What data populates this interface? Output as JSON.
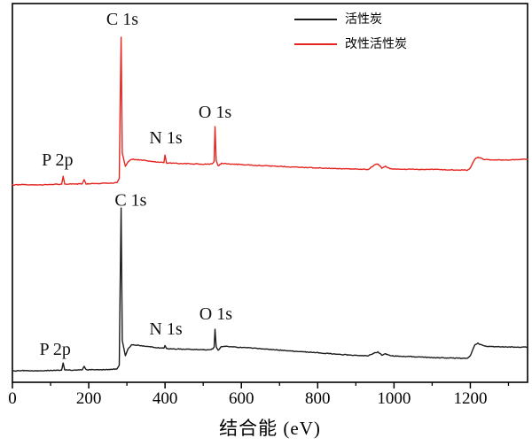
{
  "figure": {
    "background": "#ffffff"
  },
  "chart_data": {
    "type": "line",
    "title": "",
    "xlabel": "结合能 (eV)",
    "ylabel": "",
    "xlim": [
      0,
      1350
    ],
    "ylim": [
      0,
      100
    ],
    "grid": false,
    "legend_position": "top-right",
    "x_major_ticks": [
      0,
      200,
      400,
      600,
      800,
      1000,
      1200
    ],
    "x_minor_ticks": [
      100,
      300,
      500,
      700,
      900,
      1100,
      1300
    ],
    "axis_color": "#000000",
    "peaks_identified": [
      "P 2p",
      "C 1s",
      "N 1s",
      "O 1s"
    ],
    "series": [
      {
        "name": "活性炭",
        "color": "#1a1a1a",
        "points": [
          [
            0,
            3.0
          ],
          [
            30,
            3.1
          ],
          [
            60,
            3.0
          ],
          [
            90,
            3.1
          ],
          [
            120,
            3.2
          ],
          [
            129,
            3.2
          ],
          [
            133,
            5.1
          ],
          [
            137,
            3.3
          ],
          [
            155,
            3.2
          ],
          [
            183,
            3.3
          ],
          [
            188,
            4.2
          ],
          [
            193,
            3.3
          ],
          [
            225,
            3.3
          ],
          [
            258,
            3.4
          ],
          [
            274,
            3.5
          ],
          [
            280,
            4.5
          ],
          [
            284.8,
            46.0
          ],
          [
            288,
            11.0
          ],
          [
            296,
            7.0
          ],
          [
            303,
            8.8
          ],
          [
            312,
            9.9
          ],
          [
            335,
            9.7
          ],
          [
            360,
            9.4
          ],
          [
            385,
            9.1
          ],
          [
            397,
            9.0
          ],
          [
            400,
            9.7
          ],
          [
            404,
            8.9
          ],
          [
            430,
            8.8
          ],
          [
            465,
            8.7
          ],
          [
            500,
            8.6
          ],
          [
            516,
            8.6
          ],
          [
            525,
            8.8
          ],
          [
            528.5,
            9.3
          ],
          [
            531,
            14.0
          ],
          [
            534,
            9.4
          ],
          [
            539,
            8.4
          ],
          [
            548,
            9.5
          ],
          [
            575,
            9.4
          ],
          [
            600,
            9.2
          ],
          [
            650,
            8.9
          ],
          [
            700,
            8.5
          ],
          [
            750,
            8.1
          ],
          [
            800,
            7.8
          ],
          [
            850,
            7.4
          ],
          [
            900,
            7.1
          ],
          [
            933,
            7.0
          ],
          [
            947,
            7.7
          ],
          [
            958,
            8.0
          ],
          [
            968,
            7.2
          ],
          [
            978,
            7.5
          ],
          [
            990,
            7.0
          ],
          [
            1015,
            6.9
          ],
          [
            1060,
            6.7
          ],
          [
            1105,
            6.5
          ],
          [
            1150,
            6.4
          ],
          [
            1192,
            6.3
          ],
          [
            1200,
            7.0
          ],
          [
            1212,
            10.0
          ],
          [
            1220,
            10.3
          ],
          [
            1235,
            9.6
          ],
          [
            1260,
            9.4
          ],
          [
            1300,
            9.3
          ],
          [
            1350,
            9.3
          ]
        ]
      },
      {
        "name": "改性活性炭",
        "color": "#e52520",
        "points": [
          [
            0,
            52.1
          ],
          [
            30,
            52.2
          ],
          [
            60,
            52.1
          ],
          [
            90,
            52.2
          ],
          [
            120,
            52.3
          ],
          [
            129,
            52.3
          ],
          [
            133,
            54.4
          ],
          [
            137,
            52.4
          ],
          [
            155,
            52.3
          ],
          [
            183,
            52.4
          ],
          [
            188,
            53.5
          ],
          [
            193,
            52.4
          ],
          [
            225,
            52.5
          ],
          [
            258,
            52.6
          ],
          [
            274,
            52.7
          ],
          [
            280,
            53.8
          ],
          [
            284.8,
            91.1
          ],
          [
            288,
            60.5
          ],
          [
            296,
            57.0
          ],
          [
            303,
            58.2
          ],
          [
            312,
            58.9
          ],
          [
            335,
            58.7
          ],
          [
            360,
            58.4
          ],
          [
            385,
            58.1
          ],
          [
            397,
            58.0
          ],
          [
            400,
            60.0
          ],
          [
            404,
            57.9
          ],
          [
            430,
            57.8
          ],
          [
            465,
            57.7
          ],
          [
            500,
            57.6
          ],
          [
            516,
            57.6
          ],
          [
            525,
            57.8
          ],
          [
            528.5,
            58.3
          ],
          [
            531,
            67.5
          ],
          [
            534,
            58.6
          ],
          [
            539,
            57.1
          ],
          [
            548,
            57.8
          ],
          [
            575,
            57.6
          ],
          [
            600,
            57.5
          ],
          [
            650,
            57.2
          ],
          [
            700,
            57.0
          ],
          [
            750,
            56.8
          ],
          [
            800,
            56.6
          ],
          [
            850,
            56.4
          ],
          [
            900,
            56.3
          ],
          [
            933,
            56.2
          ],
          [
            947,
            57.3
          ],
          [
            958,
            57.7
          ],
          [
            968,
            56.6
          ],
          [
            978,
            57.0
          ],
          [
            990,
            56.4
          ],
          [
            1015,
            56.3
          ],
          [
            1060,
            56.2
          ],
          [
            1105,
            56.2
          ],
          [
            1150,
            56.1
          ],
          [
            1192,
            56.0
          ],
          [
            1200,
            56.6
          ],
          [
            1212,
            59.0
          ],
          [
            1220,
            59.4
          ],
          [
            1235,
            58.9
          ],
          [
            1260,
            58.7
          ],
          [
            1300,
            58.7
          ],
          [
            1350,
            58.9
          ]
        ]
      }
    ],
    "annotations": [
      {
        "series": "改性活性炭",
        "text": "P 2p",
        "x_ev": 118,
        "y_u": 58.6
      },
      {
        "series": "改性活性炭",
        "text": "C 1s",
        "x_ev": 288,
        "y_u": 95.8
      },
      {
        "series": "改性活性炭",
        "text": "N 1s",
        "x_ev": 402,
        "y_u": 64.5
      },
      {
        "series": "改性活性炭",
        "text": "O 1s",
        "x_ev": 531,
        "y_u": 71.3
      },
      {
        "series": "活性炭",
        "text": "P 2p",
        "x_ev": 112,
        "y_u": 8.6
      },
      {
        "series": "活性炭",
        "text": "C 1s",
        "x_ev": 310,
        "y_u": 48.0
      },
      {
        "series": "活性炭",
        "text": "N 1s",
        "x_ev": 402,
        "y_u": 14.0
      },
      {
        "series": "活性炭",
        "text": "O 1s",
        "x_ev": 533,
        "y_u": 18.0
      }
    ]
  },
  "legend": {
    "items": [
      {
        "label": "活性炭",
        "color": "#1a1a1a"
      },
      {
        "label": "改性活性炭",
        "color": "#e52520"
      }
    ]
  }
}
